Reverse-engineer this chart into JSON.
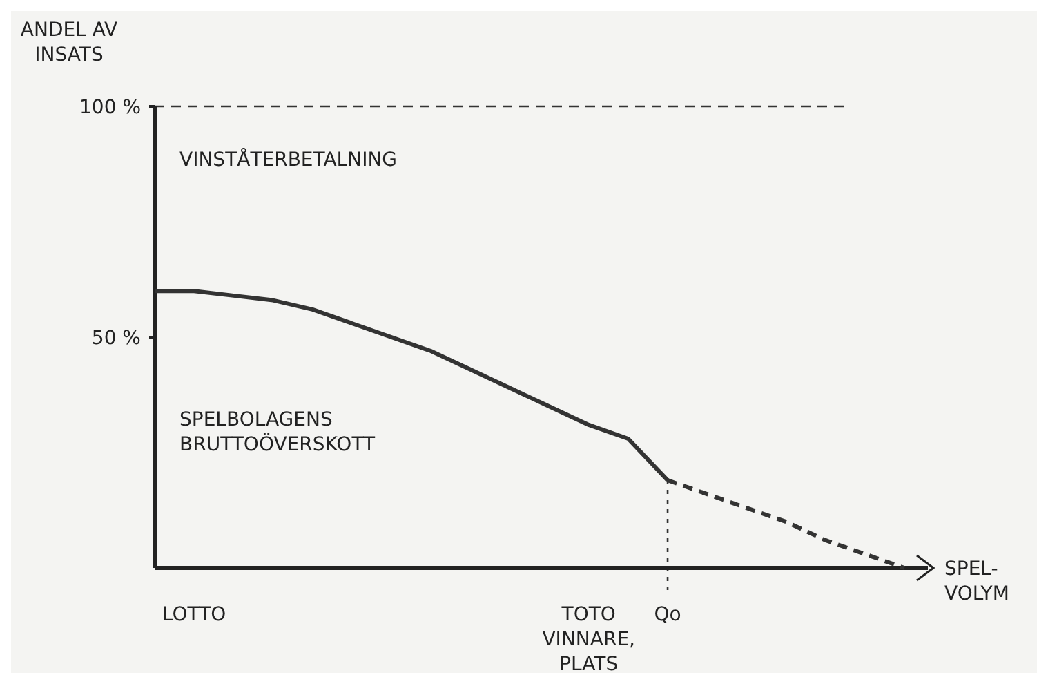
{
  "chart_data": {
    "type": "line",
    "ylabel": "ANDEL AV\nINSATS",
    "xlabel": "SPEL-\nVOLYM",
    "categories": [
      null,
      "LOTTO",
      null,
      null,
      null,
      null,
      null,
      null,
      null,
      null,
      null,
      "TOTO\nVINNARE,\nPLATS",
      null,
      "Qo",
      null,
      null,
      null,
      null,
      null,
      null
    ],
    "ylim": [
      0,
      100
    ],
    "yticks": [
      {
        "value": 50,
        "label": "50 %"
      },
      {
        "value": 100,
        "label": "100 %"
      }
    ],
    "series": [
      {
        "color": "#333333",
        "line_style": "solid",
        "values": [
          60,
          60,
          59,
          58,
          56,
          53,
          50,
          47,
          43,
          39,
          35,
          31,
          28,
          19,
          null,
          null,
          null,
          null,
          null,
          null
        ]
      },
      {
        "color": "#333333",
        "line_style": "dashed",
        "values": [
          null,
          null,
          null,
          null,
          null,
          null,
          null,
          null,
          null,
          null,
          null,
          null,
          null,
          19,
          16,
          13,
          10,
          6,
          3,
          0
        ]
      }
    ],
    "ref_lines": [
      {
        "axis": "y",
        "value": 100,
        "line_style": "dashed",
        "color": "#333333"
      },
      {
        "axis": "x",
        "value": "Qo",
        "line_style": "dotted",
        "color": "#333333"
      }
    ],
    "annotations": [
      "VINSTÅTERBETALNING",
      "SPELBOLAGENS\nBRUTTOÖVERSKOTT"
    ],
    "grid": false,
    "marker": "none"
  }
}
